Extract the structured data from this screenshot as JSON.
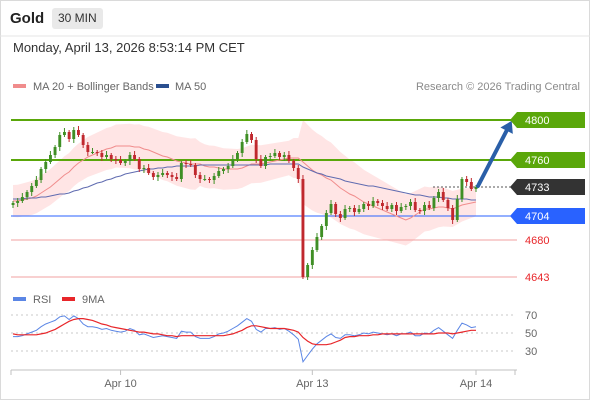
{
  "header": {
    "symbol": "Gold",
    "timeframe": "30 MIN",
    "datetime": "Monday, April 13, 2026 8:53:14 PM CET"
  },
  "legend": {
    "ma20": "MA 20 + Bollinger Bands",
    "ma50": "MA 50",
    "credit": "Research © 2026 Trading Central"
  },
  "rsi_legend": {
    "rsi": "RSI",
    "ma9": "9MA"
  },
  "colors": {
    "green": "#5aa70a",
    "blue": "#2962ff",
    "red": "#e8262a",
    "band": "#ffdede",
    "ma20": "#f08c8c",
    "ma50": "#5f6bb0",
    "rsi": "#5b86e5",
    "arrow": "#2a5fa8",
    "up": "#3f8f25",
    "down": "#c0282e",
    "dark": "#333333"
  },
  "chart_data": [
    {
      "type": "candlestick",
      "x_ticks": [
        "Apr 10",
        "Apr 13",
        "Apr 14"
      ],
      "ylim": [
        4637,
        4817
      ],
      "levels": [
        {
          "value": 4800,
          "label": "4800",
          "style": "resistance-green-box"
        },
        {
          "value": 4760,
          "label": "4760",
          "style": "resistance-green-box"
        },
        {
          "value": 4733,
          "label": "4733",
          "style": "current-price-box"
        },
        {
          "value": 4704,
          "label": "4704",
          "style": "pivot-blue-box"
        },
        {
          "value": 4680,
          "label": "4680",
          "style": "support-red-text"
        },
        {
          "value": 4643,
          "label": "4643",
          "style": "support-red-text"
        }
      ],
      "forecast_arrow": {
        "from": 4733,
        "to": 4798
      },
      "close": [
        4717,
        4719,
        4723,
        4728,
        4734,
        4740,
        4751,
        4758,
        4765,
        4773,
        4785,
        4788,
        4781,
        4790,
        4785,
        4775,
        4768,
        4768,
        4767,
        4763,
        4765,
        4761,
        4760,
        4757,
        4759,
        4765,
        4761,
        4751,
        4752,
        4747,
        4743,
        4745,
        4747,
        4745,
        4743,
        4741,
        4757,
        4756,
        4755,
        4745,
        4741,
        4741,
        4740,
        4744,
        4749,
        4751,
        4754,
        4761,
        4767,
        4778,
        4786,
        4780,
        4761,
        4754,
        4763,
        4764,
        4767,
        4763,
        4765,
        4759,
        4752,
        4741,
        4643,
        4655,
        4670,
        4683,
        4694,
        4707,
        4716,
        4706,
        4702,
        4711,
        4712,
        4708,
        4711,
        4716,
        4714,
        4719,
        4717,
        4714,
        4711,
        4715,
        4709,
        4713,
        4714,
        4718,
        4710,
        4709,
        4715,
        4712,
        4722,
        4728,
        4720,
        4712,
        4700,
        4721,
        4741,
        4738,
        4731,
        4733
      ],
      "ma20": [
        4719,
        4719,
        4720,
        4721,
        4722,
        4724,
        4727,
        4730,
        4733,
        4737,
        4741,
        4745,
        4748,
        4753,
        4757,
        4760,
        4763,
        4765,
        4767,
        4769,
        4771,
        4772,
        4774,
        4774,
        4774,
        4774,
        4773,
        4773,
        4771,
        4770,
        4768,
        4766,
        4764,
        4763,
        4761,
        4759,
        4758,
        4757,
        4756,
        4756,
        4756,
        4754,
        4753,
        4753,
        4752,
        4751,
        4751,
        4751,
        4751,
        4752,
        4754,
        4756,
        4756,
        4756,
        4757,
        4758,
        4759,
        4760,
        4761,
        4762,
        4762,
        4762,
        4758,
        4754,
        4750,
        4747,
        4745,
        4742,
        4740,
        4736,
        4732,
        4729,
        4726,
        4724,
        4721,
        4718,
        4716,
        4714,
        4712,
        4710,
        4708,
        4706,
        4704,
        4702,
        4700,
        4702,
        4705,
        4708,
        4711,
        4711,
        4712,
        4713,
        4713,
        4712,
        4711,
        4713,
        4715,
        4716,
        4717,
        4718
      ],
      "ma50": [
        4721,
        4721,
        4721,
        4722,
        4722,
        4722,
        4723,
        4723,
        4724,
        4725,
        4726,
        4726,
        4727,
        4729,
        4730,
        4732,
        4733,
        4735,
        4737,
        4738,
        4740,
        4741,
        4743,
        4744,
        4746,
        4747,
        4748,
        4749,
        4750,
        4751,
        4751,
        4752,
        4752,
        4753,
        4753,
        4754,
        4754,
        4754,
        4754,
        4754,
        4755,
        4755,
        4755,
        4755,
        4755,
        4755,
        4755,
        4755,
        4755,
        4755,
        4755,
        4755,
        4755,
        4755,
        4755,
        4756,
        4756,
        4756,
        4756,
        4756,
        4756,
        4756,
        4753,
        4751,
        4749,
        4747,
        4746,
        4744,
        4743,
        4742,
        4741,
        4739,
        4738,
        4737,
        4736,
        4735,
        4734,
        4734,
        4733,
        4732,
        4731,
        4730,
        4729,
        4728,
        4727,
        4726,
        4725,
        4725,
        4724,
        4723,
        4723,
        4723,
        4722,
        4722,
        4721,
        4721,
        4721,
        4721,
        4720,
        4720
      ]
    },
    {
      "type": "line",
      "title": "RSI",
      "y_ticks": [
        70,
        50,
        30
      ],
      "ylim": [
        10,
        80
      ],
      "series": [
        {
          "name": "RSI",
          "values": [
            46,
            46,
            47,
            49,
            51,
            53,
            57,
            60,
            62,
            64,
            68,
            69,
            65,
            69,
            66,
            60,
            57,
            57,
            56,
            54,
            55,
            53,
            52,
            51,
            52,
            55,
            53,
            48,
            49,
            47,
            45,
            46,
            47,
            46,
            45,
            44,
            52,
            51,
            51,
            46,
            44,
            44,
            44,
            46,
            49,
            50,
            52,
            55,
            58,
            62,
            66,
            63,
            54,
            51,
            55,
            55,
            56,
            54,
            55,
            52,
            48,
            43,
            18,
            25,
            32,
            38,
            42,
            46,
            49,
            45,
            44,
            48,
            48,
            47,
            48,
            50,
            49,
            51,
            50,
            49,
            48,
            49,
            47,
            49,
            49,
            51,
            47,
            47,
            50,
            49,
            53,
            56,
            52,
            48,
            44,
            53,
            61,
            59,
            56,
            57
          ]
        },
        {
          "name": "9MA",
          "values": [
            49,
            48,
            48,
            48,
            48,
            48,
            49,
            50,
            52,
            54,
            57,
            60,
            63,
            65,
            66,
            66,
            65,
            64,
            62,
            60,
            59,
            57,
            56,
            55,
            54,
            53,
            52,
            51,
            51,
            50,
            49,
            49,
            48,
            47,
            47,
            46,
            47,
            47,
            47,
            47,
            47,
            47,
            47,
            47,
            47,
            47,
            48,
            49,
            51,
            53,
            56,
            58,
            58,
            57,
            56,
            55,
            55,
            55,
            55,
            54,
            53,
            51,
            45,
            41,
            38,
            37,
            37,
            37,
            38,
            40,
            42,
            45,
            46,
            46,
            47,
            47,
            47,
            48,
            48,
            49,
            49,
            49,
            49,
            49,
            49,
            49,
            49,
            49,
            49,
            49,
            49,
            50,
            50,
            50,
            49,
            50,
            51,
            52,
            53,
            53
          ]
        }
      ]
    }
  ]
}
